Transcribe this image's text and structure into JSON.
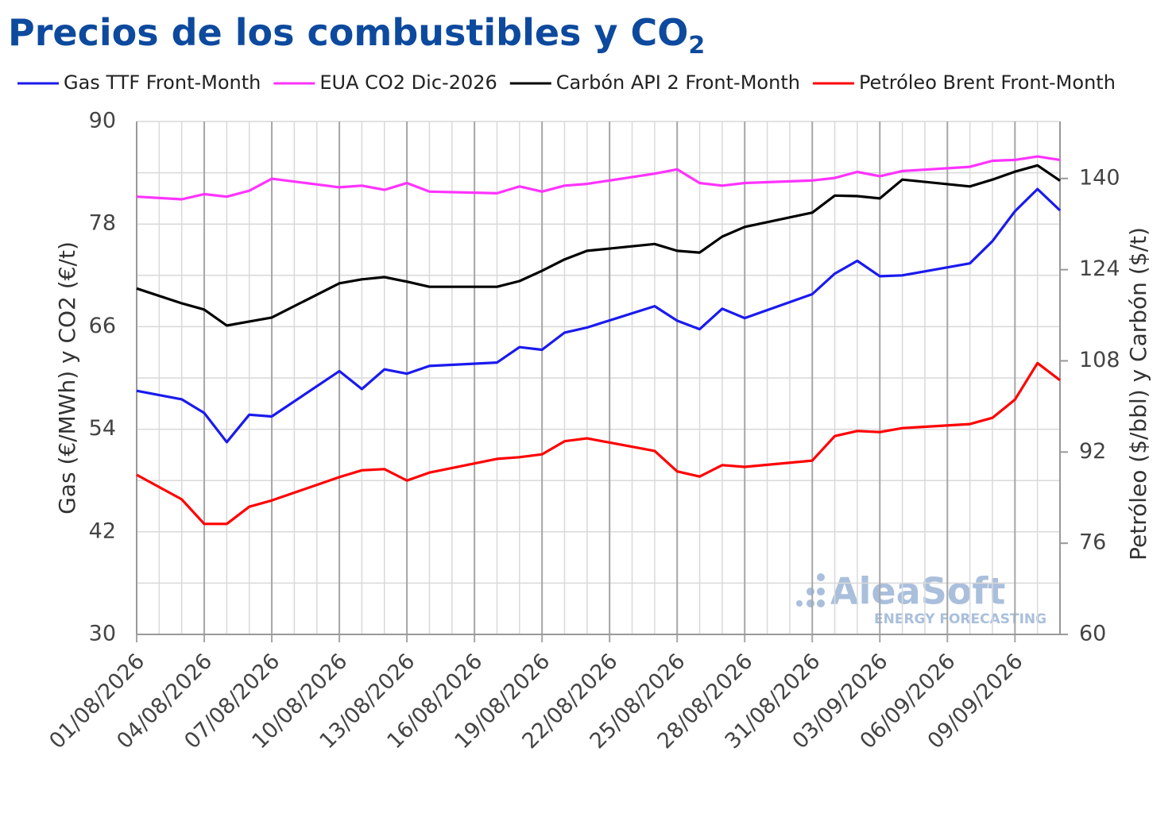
{
  "chart_data": {
    "type": "line",
    "title": "Precios de los combustibles y CO",
    "title_subscript": "2",
    "ylabel": "Gas (€/MWh) y CO2 (€/t)",
    "y2label": "Petróleo ($/bbl) y Carbón ($/t)",
    "watermark": {
      "name": "AleaSoft",
      "tagline": "ENERGY FORECASTING"
    },
    "x": [
      "01/08/2026",
      "03/08/2026",
      "04/08/2026",
      "05/08/2026",
      "06/08/2026",
      "07/08/2026",
      "10/08/2026",
      "11/08/2026",
      "12/08/2026",
      "13/08/2026",
      "14/08/2026",
      "17/08/2026",
      "18/08/2026",
      "19/08/2026",
      "20/08/2026",
      "21/08/2026",
      "24/08/2026",
      "25/08/2026",
      "26/08/2026",
      "27/08/2026",
      "28/08/2026",
      "31/08/2026",
      "01/09/2026",
      "02/09/2026",
      "03/09/2026",
      "04/09/2026",
      "07/09/2026",
      "08/09/2026",
      "09/09/2026",
      "10/09/2026",
      "11/09/2026"
    ],
    "xlim": [
      "01/08/2026",
      "11/09/2026"
    ],
    "xticks": [
      "01/08/2026",
      "04/08/2026",
      "07/08/2026",
      "10/08/2026",
      "13/08/2026",
      "16/08/2026",
      "19/08/2026",
      "22/08/2026",
      "25/08/2026",
      "28/08/2026",
      "31/08/2026",
      "03/09/2026",
      "06/09/2026",
      "09/09/2026"
    ],
    "minor_x_grid": "day",
    "ylim": [
      30,
      90
    ],
    "yticks": [
      30,
      42,
      54,
      66,
      78,
      90
    ],
    "y2lim": [
      60,
      150
    ],
    "y2ticks": [
      60,
      76,
      92,
      108,
      124,
      140
    ],
    "minor_y_grid": true,
    "legend": "top",
    "series": [
      {
        "name": "Gas TTF Front-Month",
        "color": "#1a1aee",
        "values": [
          58.5,
          57.5,
          55.9,
          52.5,
          55.7,
          55.5,
          60.8,
          58.7,
          61.0,
          60.5,
          61.4,
          61.8,
          63.6,
          63.3,
          65.3,
          65.9,
          68.4,
          66.7,
          65.7,
          68.1,
          67.0,
          69.8,
          72.2,
          73.7,
          71.9,
          72.0,
          73.4,
          76.0,
          79.5,
          82.1,
          79.6
        ]
      },
      {
        "name": "EUA CO2 Dic-2026",
        "color": "#ff33ff",
        "values": [
          81.2,
          80.9,
          81.5,
          81.2,
          81.9,
          83.3,
          82.3,
          82.5,
          82.0,
          82.8,
          81.8,
          81.6,
          82.4,
          81.8,
          82.5,
          82.7,
          83.9,
          84.4,
          82.8,
          82.5,
          82.8,
          83.1,
          83.4,
          84.1,
          83.6,
          84.2,
          84.7,
          85.4,
          85.5,
          85.9,
          85.5
        ]
      },
      {
        "name": "Carbón API 2 Front-Month",
        "color": "#000000",
        "axis": "y2",
        "values": [
          120.7,
          118.1,
          117.0,
          114.2,
          114.9,
          115.6,
          121.6,
          122.3,
          122.7,
          121.9,
          121.0,
          121.0,
          122.0,
          123.8,
          125.8,
          127.3,
          128.5,
          127.3,
          127.0,
          129.8,
          131.5,
          134.0,
          137.0,
          136.9,
          136.5,
          139.8,
          138.6,
          139.8,
          141.2,
          142.3,
          139.6
        ]
      },
      {
        "name": "Petróleo Brent Front-Month",
        "color": "#ff0000",
        "axis": "y2",
        "values": [
          88.0,
          83.7,
          79.4,
          79.4,
          82.4,
          83.5,
          87.6,
          88.8,
          89.0,
          87.0,
          88.4,
          90.8,
          91.1,
          91.6,
          93.9,
          94.4,
          92.2,
          88.6,
          87.7,
          89.7,
          89.4,
          90.5,
          94.8,
          95.7,
          95.5,
          96.2,
          96.9,
          98.0,
          101.2,
          107.6,
          104.6
        ]
      }
    ]
  }
}
